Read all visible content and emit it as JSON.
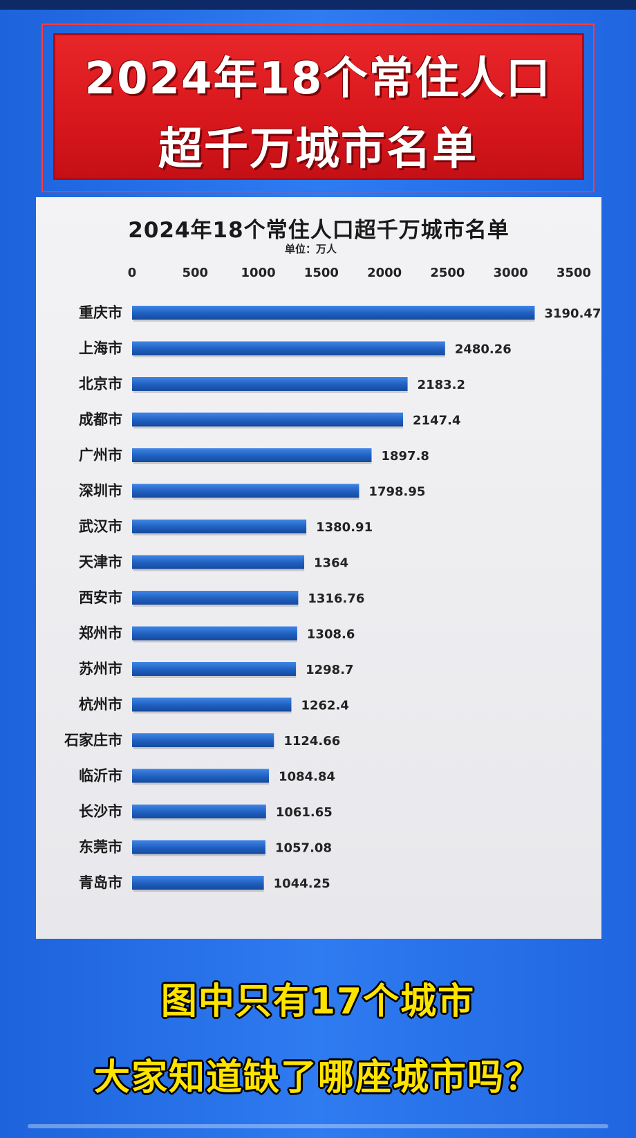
{
  "banner": {
    "line1": "2024年18个常住人口",
    "line2": "超千万城市名单"
  },
  "chart_data": {
    "type": "bar",
    "orientation": "horizontal",
    "title": "2024年18个常住人口超千万城市名单",
    "unit_label": "单位：万人",
    "xlim": [
      0,
      3500
    ],
    "x_ticks": [
      "0",
      "500",
      "1000",
      "1500",
      "2000",
      "2500",
      "3000",
      "3500"
    ],
    "tick_values": [
      0,
      500,
      1000,
      1500,
      2000,
      2500,
      3000,
      3500
    ],
    "categories": [
      "重庆市",
      "上海市",
      "北京市",
      "成都市",
      "广州市",
      "深圳市",
      "武汉市",
      "天津市",
      "西安市",
      "郑州市",
      "苏州市",
      "杭州市",
      "石家庄市",
      "临沂市",
      "长沙市",
      "东莞市",
      "青岛市"
    ],
    "values": [
      3190.47,
      2480.26,
      2183.2,
      2147.4,
      1897.8,
      1798.95,
      1380.91,
      1364,
      1316.76,
      1308.6,
      1298.7,
      1262.4,
      1124.66,
      1084.84,
      1061.65,
      1057.08,
      1044.25
    ],
    "value_labels": [
      "3190.47",
      "2480.26",
      "2183.2",
      "2147.4",
      "1897.8",
      "1798.95",
      "1380.91",
      "1364",
      "1316.76",
      "1308.6",
      "1298.7",
      "1262.4",
      "1124.66",
      "1084.84",
      "1061.65",
      "1057.08",
      "1044.25"
    ],
    "bar_color": "#1f5fbf",
    "grid": false,
    "legend": "none"
  },
  "caption": {
    "line1": "图中只有17个城市",
    "line2": "大家知道缺了哪座城市吗？"
  },
  "colors": {
    "background": "#2a72ea",
    "banner": "#d9181d",
    "caption": "#ffe400"
  }
}
